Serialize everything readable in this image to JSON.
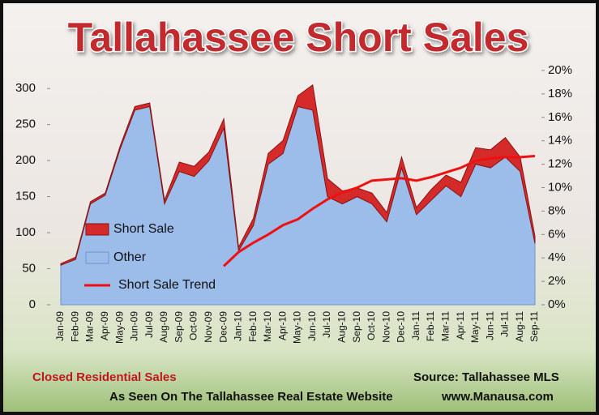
{
  "chart_data": {
    "type": "stacked-area",
    "title": "Tallahassee Short Sales",
    "caption": "Closed Residential Sales",
    "source": "Source: Tallahassee MLS",
    "footer_text": "As Seen On The Tallahassee Real Estate Website",
    "footer_link": "www.Manausa.com",
    "categories": [
      "Jan-09",
      "Feb-09",
      "Mar-09",
      "Apr-09",
      "May-09",
      "Jun-09",
      "Jul-09",
      "Aug-09",
      "Sep-09",
      "Oct-09",
      "Nov-09",
      "Dec-09",
      "Jan-10",
      "Feb-10",
      "Mar-10",
      "Apr-10",
      "May-10",
      "Jun-10",
      "Jul-10",
      "Aug-10",
      "Sep-10",
      "Oct-10",
      "Nov-10",
      "Dec-10",
      "Jan-11",
      "Feb-11",
      "Mar-11",
      "Apr-11",
      "May-11",
      "Jun-11",
      "Jul-11",
      "Aug-11",
      "Sep-11"
    ],
    "series": [
      {
        "name": "Short Sale",
        "color": "#d42a2a",
        "values": [
          2,
          3,
          3,
          3,
          4,
          5,
          5,
          5,
          13,
          14,
          12,
          13,
          5,
          10,
          15,
          18,
          15,
          35,
          25,
          18,
          12,
          15,
          13,
          15,
          10,
          15,
          15,
          20,
          23,
          25,
          27,
          20,
          10
        ]
      },
      {
        "name": "Other",
        "color": "#9cbcea",
        "values": [
          55,
          63,
          140,
          152,
          216,
          270,
          275,
          140,
          185,
          178,
          200,
          245,
          75,
          110,
          195,
          210,
          275,
          270,
          150,
          140,
          150,
          140,
          115,
          190,
          125,
          145,
          165,
          150,
          195,
          190,
          205,
          185,
          85
        ]
      },
      {
        "name": "Short Sale Trend",
        "color": "#ee1111",
        "axis": "y2",
        "values": [
          null,
          null,
          null,
          null,
          null,
          null,
          null,
          null,
          null,
          null,
          null,
          3.3,
          4.5,
          5.3,
          6.0,
          6.8,
          7.3,
          8.2,
          9.0,
          9.6,
          10.0,
          10.6,
          10.7,
          10.8,
          10.6,
          10.9,
          11.3,
          11.7,
          12.3,
          12.5,
          12.6,
          12.6,
          12.7
        ]
      }
    ],
    "ylim": [
      0,
      325
    ],
    "yticks": [
      0,
      50,
      100,
      150,
      200,
      250,
      300
    ],
    "y2lim": [
      0,
      20
    ],
    "y2ticks": [
      {
        "value": 0,
        "label": "0%"
      },
      {
        "value": 2,
        "label": "2%"
      },
      {
        "value": 4,
        "label": "4%"
      },
      {
        "value": 6,
        "label": "6%"
      },
      {
        "value": 8,
        "label": "8%"
      },
      {
        "value": 10,
        "label": "10%"
      },
      {
        "value": 12,
        "label": "12%"
      },
      {
        "value": 14,
        "label": "14%"
      },
      {
        "value": 16,
        "label": "16%"
      },
      {
        "value": 18,
        "label": "18%"
      },
      {
        "value": 20,
        "label": "20%"
      }
    ]
  }
}
